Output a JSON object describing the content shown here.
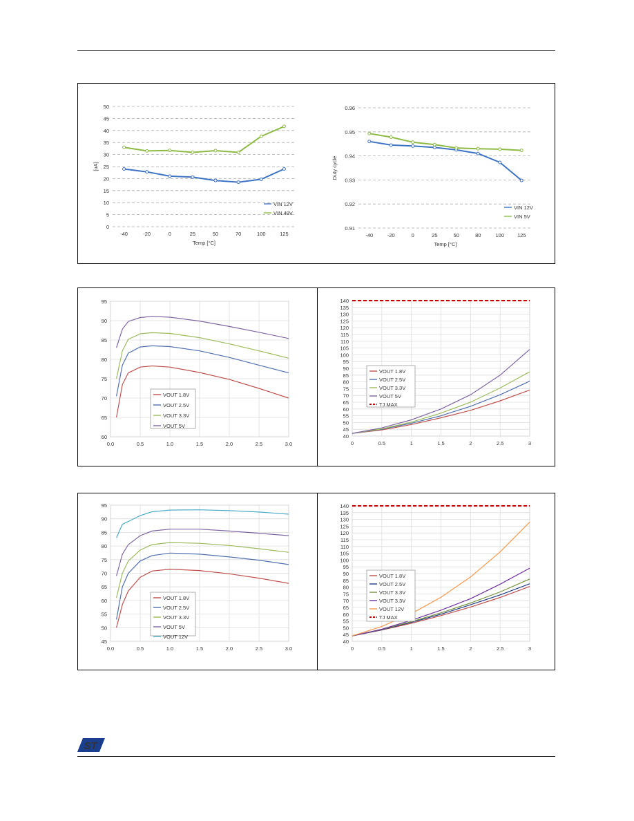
{
  "page": {
    "logo_text": "ST"
  },
  "charts": [
    {
      "type": "line",
      "xlabel": "Temp [°C]",
      "ylabel": "[uA]",
      "x": [
        "-40",
        "-20",
        "0",
        "25",
        "50",
        "70",
        "100",
        "125"
      ],
      "ylim": [
        0,
        50
      ],
      "yticks": [
        0,
        5,
        10,
        15,
        20,
        25,
        30,
        35,
        40,
        45,
        50
      ],
      "grid": "dashed",
      "markers": true,
      "legend": "bottom-right",
      "series": [
        {
          "name": "VIN 12V",
          "color": "#3d73c4",
          "values": [
            24,
            22.8,
            21,
            20.6,
            19.2,
            18.5,
            19.7,
            24
          ]
        },
        {
          "name": "VIN 48V",
          "color": "#8cba43",
          "values": [
            33,
            31.5,
            31.7,
            30.9,
            31.6,
            30.9,
            37.6,
            41.7
          ]
        }
      ]
    },
    {
      "type": "line",
      "xlabel": "Temp [°C]",
      "ylabel": "Duty cycle",
      "x": [
        "-40",
        "-20",
        "0",
        "25",
        "50",
        "80",
        "100",
        "125"
      ],
      "ylim": [
        0.91,
        0.96
      ],
      "yticks": [
        0.91,
        0.92,
        0.93,
        0.94,
        0.95,
        0.96
      ],
      "grid": "dashed",
      "markers": true,
      "legend": "bottom-right",
      "series": [
        {
          "name": "VIN 12V",
          "color": "#3d73c4",
          "values": [
            0.946,
            0.9445,
            0.9441,
            0.9435,
            0.9425,
            0.941,
            0.9373,
            0.9298
          ]
        },
        {
          "name": "VIN 5V",
          "color": "#8cba43",
          "values": [
            0.9493,
            0.9478,
            0.9457,
            0.9447,
            0.9433,
            0.943,
            0.9428,
            0.9423
          ]
        }
      ]
    },
    {
      "type": "line",
      "x": [
        0,
        0.5,
        1.0,
        1.5,
        2.0,
        2.5,
        3.0
      ],
      "xtick_labels": [
        "0.0",
        "0.5",
        "1.0",
        "1.5",
        "2.0",
        "2.5",
        "3.0"
      ],
      "xlim": [
        0,
        3
      ],
      "ylim": [
        60,
        95
      ],
      "yticks": [
        60,
        65,
        70,
        75,
        80,
        85,
        90,
        95
      ],
      "grid": "solid",
      "markers": false,
      "legend": "bottom-left",
      "series": [
        {
          "name": "VOUT 1.8V",
          "color": "#c0504d",
          "points": [
            [
              0.1,
              65
            ],
            [
              0.2,
              73.5
            ],
            [
              0.3,
              76.5
            ],
            [
              0.5,
              78.0
            ],
            [
              0.7,
              78.3
            ],
            [
              1.0,
              78.0
            ],
            [
              1.5,
              76.6
            ],
            [
              2.0,
              74.8
            ],
            [
              2.5,
              72.5
            ],
            [
              3.0,
              70.0
            ]
          ]
        },
        {
          "name": "VOUT 2.5V",
          "color": "#4f6fb0",
          "points": [
            [
              0.1,
              70.5
            ],
            [
              0.2,
              78.5
            ],
            [
              0.3,
              81.6
            ],
            [
              0.5,
              83.2
            ],
            [
              0.7,
              83.5
            ],
            [
              1.0,
              83.3
            ],
            [
              1.5,
              82.2
            ],
            [
              2.0,
              80.5
            ],
            [
              2.5,
              78.5
            ],
            [
              3.0,
              76.5
            ]
          ]
        },
        {
          "name": "VOUT 3.3V",
          "color": "#9bbb59",
          "points": [
            [
              0.1,
              75
            ],
            [
              0.2,
              82.2
            ],
            [
              0.3,
              85.2
            ],
            [
              0.5,
              86.6
            ],
            [
              0.7,
              86.9
            ],
            [
              1.0,
              86.7
            ],
            [
              1.5,
              85.6
            ],
            [
              2.0,
              84.0
            ],
            [
              2.5,
              82.2
            ],
            [
              3.0,
              80.3
            ]
          ]
        },
        {
          "name": "VOUT 5V",
          "color": "#8064a2",
          "points": [
            [
              0.1,
              83
            ],
            [
              0.2,
              87.8
            ],
            [
              0.3,
              89.8
            ],
            [
              0.5,
              90.8
            ],
            [
              0.7,
              91.1
            ],
            [
              1.0,
              90.9
            ],
            [
              1.5,
              89.9
            ],
            [
              2.0,
              88.5
            ],
            [
              2.5,
              87.0
            ],
            [
              3.0,
              85.4
            ]
          ]
        }
      ]
    },
    {
      "type": "line",
      "x": [
        0,
        0.5,
        1,
        1.5,
        2,
        2.5,
        3
      ],
      "xtick_labels": [
        "0",
        "0.5",
        "1",
        "1.5",
        "2",
        "2.5",
        "3"
      ],
      "xlim": [
        0,
        3
      ],
      "ylim": [
        40,
        140
      ],
      "yticks": [
        40,
        45,
        50,
        55,
        60,
        65,
        70,
        75,
        80,
        85,
        90,
        95,
        100,
        105,
        110,
        115,
        120,
        125,
        130,
        135,
        140
      ],
      "grid": "solid",
      "markers": false,
      "legend": "left",
      "series": [
        {
          "name": "VOUT 1.8V",
          "color": "#c0504d",
          "points": [
            [
              0,
              42
            ],
            [
              0.5,
              44.5
            ],
            [
              1,
              48.5
            ],
            [
              1.5,
              53.5
            ],
            [
              2,
              59
            ],
            [
              2.5,
              66
            ],
            [
              3,
              74
            ]
          ]
        },
        {
          "name": "VOUT 2.5V",
          "color": "#4f6fb0",
          "points": [
            [
              0,
              42
            ],
            [
              0.5,
              45
            ],
            [
              1,
              49.5
            ],
            [
              1.5,
              55
            ],
            [
              2,
              62
            ],
            [
              2.5,
              70.5
            ],
            [
              3,
              80.5
            ]
          ]
        },
        {
          "name": "VOUT 3.3V",
          "color": "#9bbb59",
          "points": [
            [
              0,
              42
            ],
            [
              0.5,
              45.3
            ],
            [
              1,
              50.3
            ],
            [
              1.5,
              57
            ],
            [
              2,
              65
            ],
            [
              2.5,
              75.5
            ],
            [
              3,
              87.5
            ]
          ]
        },
        {
          "name": "VOUT 5V",
          "color": "#8064a2",
          "points": [
            [
              0,
              42
            ],
            [
              0.5,
              46
            ],
            [
              1,
              52
            ],
            [
              1.5,
              60
            ],
            [
              2,
              70.5
            ],
            [
              2.5,
              85
            ],
            [
              3,
              104
            ]
          ]
        },
        {
          "name": "TJ MAX",
          "color": "#c00000",
          "dashed": true,
          "points": [
            [
              0,
              140
            ],
            [
              3,
              140
            ]
          ]
        }
      ]
    },
    {
      "type": "line",
      "x": [
        0,
        0.5,
        1.0,
        1.5,
        2.0,
        2.5,
        3.0
      ],
      "xtick_labels": [
        "0.0",
        "0.5",
        "1.0",
        "1.5",
        "2.0",
        "2.5",
        "3.0"
      ],
      "xlim": [
        0,
        3
      ],
      "ylim": [
        45,
        95
      ],
      "yticks": [
        45,
        50,
        55,
        60,
        65,
        70,
        75,
        80,
        85,
        90,
        95
      ],
      "grid": "solid",
      "markers": false,
      "legend": "bottom-left",
      "series": [
        {
          "name": "VOUT 1.8V",
          "color": "#c0504d",
          "points": [
            [
              0.1,
              50
            ],
            [
              0.2,
              58.5
            ],
            [
              0.3,
              63.5
            ],
            [
              0.5,
              68.5
            ],
            [
              0.7,
              70.8
            ],
            [
              1.0,
              71.5
            ],
            [
              1.5,
              71.0
            ],
            [
              2.0,
              69.8
            ],
            [
              2.5,
              68.2
            ],
            [
              3.0,
              66.3
            ]
          ]
        },
        {
          "name": "VOUT 2.5V",
          "color": "#4f6fb0",
          "points": [
            [
              0.1,
              53
            ],
            [
              0.2,
              65
            ],
            [
              0.3,
              70
            ],
            [
              0.5,
              74.5
            ],
            [
              0.7,
              76.5
            ],
            [
              1.0,
              77.4
            ],
            [
              1.5,
              77.0
            ],
            [
              2.0,
              76.0
            ],
            [
              2.5,
              74.8
            ],
            [
              3.0,
              73.2
            ]
          ]
        },
        {
          "name": "VOUT 3.3V",
          "color": "#9bbb59",
          "points": [
            [
              0.1,
              61
            ],
            [
              0.2,
              70
            ],
            [
              0.3,
              74.5
            ],
            [
              0.5,
              78.5
            ],
            [
              0.7,
              80.5
            ],
            [
              1.0,
              81.3
            ],
            [
              1.5,
              81.0
            ],
            [
              2.0,
              80.2
            ],
            [
              2.5,
              79.0
            ],
            [
              3.0,
              77.7
            ]
          ]
        },
        {
          "name": "VOUT 5V",
          "color": "#8064a2",
          "points": [
            [
              0.1,
              69
            ],
            [
              0.2,
              77
            ],
            [
              0.3,
              80.5
            ],
            [
              0.5,
              83.8
            ],
            [
              0.7,
              85.5
            ],
            [
              1.0,
              86.2
            ],
            [
              1.5,
              86.2
            ],
            [
              2.0,
              85.5
            ],
            [
              2.5,
              84.7
            ],
            [
              3.0,
              83.8
            ]
          ]
        },
        {
          "name": "VOUT 12V",
          "color": "#4bacc6",
          "points": [
            [
              0.1,
              83
            ],
            [
              0.2,
              88
            ],
            [
              0.3,
              89
            ],
            [
              0.5,
              91.2
            ],
            [
              0.7,
              92.6
            ],
            [
              1.0,
              93.2
            ],
            [
              1.5,
              93.3
            ],
            [
              2.0,
              93.0
            ],
            [
              2.5,
              92.5
            ],
            [
              3.0,
              91.7
            ]
          ]
        }
      ]
    },
    {
      "type": "line",
      "x": [
        0,
        0.5,
        1,
        1.5,
        2,
        2.5,
        3
      ],
      "xtick_labels": [
        "0",
        "0.5",
        "1",
        "1.5",
        "2",
        "2.5",
        "3"
      ],
      "xlim": [
        0,
        3
      ],
      "ylim": [
        40,
        140
      ],
      "yticks": [
        40,
        45,
        50,
        55,
        60,
        65,
        70,
        75,
        80,
        85,
        90,
        95,
        100,
        105,
        110,
        115,
        120,
        125,
        130,
        135,
        140
      ],
      "grid": "solid",
      "markers": false,
      "legend": "left",
      "series": [
        {
          "name": "VOUT 1.8V",
          "color": "#c0504d",
          "points": [
            [
              0,
              44
            ],
            [
              0.5,
              48.3
            ],
            [
              1,
              53.3
            ],
            [
              1.5,
              59
            ],
            [
              2,
              65.3
            ],
            [
              2.5,
              72.4
            ],
            [
              3,
              80.5
            ]
          ]
        },
        {
          "name": "VOUT 2.5V",
          "color": "#1f3d8a",
          "points": [
            [
              0,
              44
            ],
            [
              0.5,
              48.5
            ],
            [
              1,
              54
            ],
            [
              1.5,
              60
            ],
            [
              2,
              67
            ],
            [
              2.5,
              74.3
            ],
            [
              3,
              82.5
            ]
          ]
        },
        {
          "name": "VOUT 3.3V",
          "color": "#77933c",
          "points": [
            [
              0,
              44
            ],
            [
              0.5,
              48.8
            ],
            [
              1,
              54.5
            ],
            [
              1.5,
              61
            ],
            [
              2,
              68.3
            ],
            [
              2.5,
              76.5
            ],
            [
              3,
              86
            ]
          ]
        },
        {
          "name": "VOUT 3.3V",
          "color": "#7030a0",
          "points": [
            [
              0,
              44
            ],
            [
              0.5,
              49
            ],
            [
              1,
              55.5
            ],
            [
              1.5,
              63
            ],
            [
              2,
              71.5
            ],
            [
              2.5,
              82.2
            ],
            [
              3,
              94
            ]
          ]
        },
        {
          "name": "VOUT 12V",
          "color": "#f79646",
          "points": [
            [
              0,
              44
            ],
            [
              0.5,
              51
            ],
            [
              1,
              60.5
            ],
            [
              1.5,
              72.5
            ],
            [
              2,
              87.5
            ],
            [
              2.5,
              106
            ],
            [
              3,
              128
            ]
          ]
        },
        {
          "name": "TJ MAX",
          "color": "#c00000",
          "dashed": true,
          "points": [
            [
              0,
              140
            ],
            [
              3,
              140
            ]
          ]
        }
      ]
    }
  ]
}
